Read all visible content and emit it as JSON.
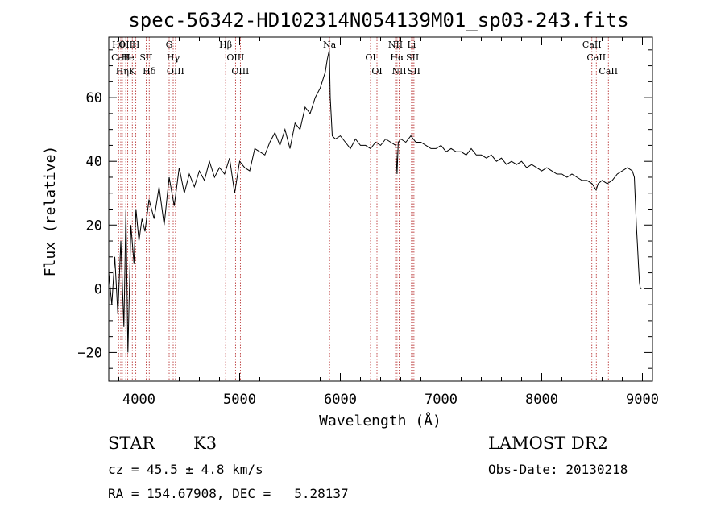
{
  "chart_data": {
    "type": "line",
    "title": "spec-56342-HD102314N054139M01_sp03-243.fits",
    "xlabel": "Wavelength (Å)",
    "ylabel": "Flux (relative)",
    "xlim": [
      3700,
      9100
    ],
    "ylim": [
      -29,
      79
    ],
    "xticks": [
      4000,
      5000,
      6000,
      7000,
      8000,
      9000
    ],
    "yticks": [
      -20,
      0,
      20,
      40,
      60
    ],
    "xtick_labels": [
      "4000",
      "5000",
      "6000",
      "7000",
      "8000",
      "9000"
    ],
    "ytick_labels": [
      "−20",
      "0",
      "20",
      "40",
      "60"
    ],
    "grid": false,
    "series": [
      {
        "x": [
          3700,
          3730,
          3760,
          3790,
          3820,
          3850,
          3870,
          3890,
          3920,
          3950,
          3970,
          4000,
          4030,
          4060,
          4100,
          4150,
          4200,
          4250,
          4300,
          4350,
          4400,
          4450,
          4500,
          4550,
          4600,
          4650,
          4700,
          4750,
          4800,
          4850,
          4900,
          4950,
          5000,
          5050,
          5100,
          5150,
          5200,
          5250,
          5300,
          5350,
          5400,
          5450,
          5500,
          5550,
          5600,
          5650,
          5700,
          5750,
          5800,
          5850,
          5870,
          5890,
          5900,
          5920,
          5950,
          6000,
          6050,
          6100,
          6150,
          6200,
          6250,
          6300,
          6350,
          6400,
          6450,
          6500,
          6550,
          6563,
          6575,
          6600,
          6650,
          6700,
          6750,
          6800,
          6850,
          6900,
          6950,
          7000,
          7050,
          7100,
          7150,
          7200,
          7250,
          7300,
          7350,
          7400,
          7450,
          7500,
          7550,
          7600,
          7650,
          7700,
          7750,
          7800,
          7850,
          7900,
          7950,
          8000,
          8050,
          8100,
          8150,
          8200,
          8250,
          8300,
          8350,
          8400,
          8450,
          8500,
          8540,
          8560,
          8600,
          8650,
          8700,
          8750,
          8800,
          8850,
          8900,
          8920,
          8940,
          8950,
          8960,
          8970,
          8980,
          8990
        ],
        "y": [
          5,
          -5,
          10,
          -8,
          15,
          -12,
          25,
          -20,
          20,
          8,
          25,
          15,
          22,
          18,
          28,
          22,
          32,
          20,
          35,
          26,
          38,
          30,
          36,
          32,
          37,
          34,
          40,
          35,
          38,
          36,
          41,
          30,
          40,
          38,
          37,
          44,
          43,
          42,
          46,
          49,
          45,
          50,
          44,
          52,
          50,
          57,
          55,
          60,
          63,
          68,
          72,
          75,
          60,
          48,
          47,
          48,
          46,
          44,
          47,
          45,
          45,
          44,
          46,
          45,
          47,
          46,
          45,
          36,
          46,
          47,
          46,
          48,
          46,
          46,
          45,
          44,
          44,
          45,
          43,
          44,
          43,
          43,
          42,
          44,
          42,
          42,
          41,
          42,
          40,
          41,
          39,
          40,
          39,
          40,
          38,
          39,
          38,
          37,
          38,
          37,
          36,
          36,
          35,
          36,
          35,
          34,
          34,
          33,
          31,
          33,
          34,
          33,
          34,
          36,
          37,
          38,
          37,
          35,
          20,
          14,
          8,
          2,
          0,
          0
        ]
      }
    ],
    "line_markers": [
      {
        "x": 3798,
        "label": "Hθ"
      },
      {
        "x": 3820,
        "label": "CaII"
      },
      {
        "x": 3835,
        "label": "Hη"
      },
      {
        "x": 3869,
        "label": "OII"
      },
      {
        "x": 3889,
        "label": "He"
      },
      {
        "x": 3934,
        "label": "K"
      },
      {
        "x": 3969,
        "label": "H"
      },
      {
        "x": 4072,
        "label": "SII"
      },
      {
        "x": 4102,
        "label": "Hδ"
      },
      {
        "x": 4300,
        "label": "G"
      },
      {
        "x": 4340,
        "label": "Hγ"
      },
      {
        "x": 4363,
        "label": "OIII"
      },
      {
        "x": 4861,
        "label": "Hβ"
      },
      {
        "x": 4959,
        "label": "OIII"
      },
      {
        "x": 5007,
        "label": "OIII"
      },
      {
        "x": 5893,
        "label": "Na"
      },
      {
        "x": 6300,
        "label": "OI"
      },
      {
        "x": 6364,
        "label": "OI"
      },
      {
        "x": 6548,
        "label": "NII"
      },
      {
        "x": 6563,
        "label": "Hα"
      },
      {
        "x": 6584,
        "label": "NII"
      },
      {
        "x": 6707,
        "label": "Li"
      },
      {
        "x": 6717,
        "label": "SII"
      },
      {
        "x": 6731,
        "label": "SII"
      },
      {
        "x": 8498,
        "label": "CaII"
      },
      {
        "x": 8542,
        "label": "CaII"
      },
      {
        "x": 8662,
        "label": "CaII"
      }
    ]
  },
  "info": {
    "class_label": "STAR",
    "subclass": "K3",
    "survey": "LAMOST DR2",
    "cz": "cz = 45.5 ± 4.8 km/s",
    "obs_date": "Obs-Date: 20130218",
    "coords": "RA = 154.67908, DEC =   5.28137"
  }
}
